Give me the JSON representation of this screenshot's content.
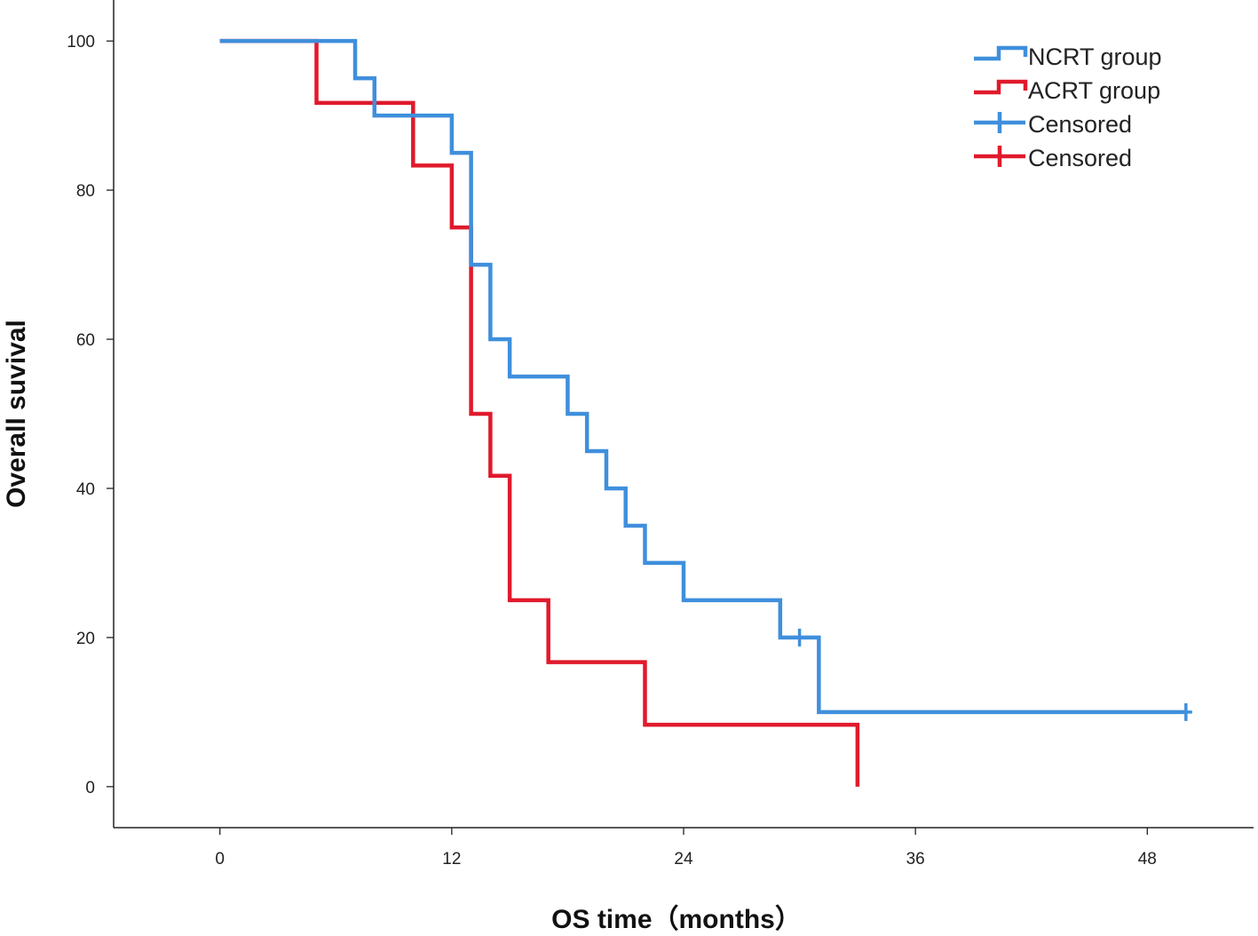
{
  "chart_data": {
    "type": "line",
    "subtype": "kaplan-meier",
    "title": "",
    "xlabel": "OS time（months）",
    "ylabel": "Overall suvival",
    "xlim": [
      -5.5,
      53.5
    ],
    "ylim": [
      -5.5,
      105.5
    ],
    "x_ticks": [
      0,
      12,
      24,
      36,
      48
    ],
    "y_ticks": [
      0,
      20,
      40,
      60,
      80,
      100
    ],
    "grid": false,
    "legend_position": "top-right",
    "legend": [
      {
        "label": "NCRT group",
        "kind": "step",
        "color": "#3f8fdc"
      },
      {
        "label": "ACRT group",
        "kind": "step",
        "color": "#e01a2c"
      },
      {
        "label": "Censored",
        "kind": "censor",
        "color": "#3f8fdc"
      },
      {
        "label": "Censored",
        "kind": "censor",
        "color": "#e01a2c"
      }
    ],
    "series": [
      {
        "name": "NCRT group",
        "color": "#3f8fdc",
        "x": [
          0,
          7,
          8,
          12,
          13,
          14,
          15,
          18,
          19,
          20,
          21,
          22,
          24,
          29,
          31,
          50
        ],
        "y": [
          100,
          95,
          90,
          85,
          70,
          60,
          55,
          50,
          45,
          40,
          35,
          30,
          25,
          20,
          10,
          10
        ],
        "censored": [
          [
            30,
            20
          ],
          [
            50,
            10
          ]
        ]
      },
      {
        "name": "ACRT group",
        "color": "#e01a2c",
        "x": [
          0,
          5,
          10,
          12,
          13,
          14,
          15,
          17,
          22,
          33
        ],
        "y": [
          100,
          91.7,
          83.3,
          75,
          50,
          41.7,
          25,
          16.7,
          8.3,
          0
        ],
        "censored": []
      }
    ]
  }
}
